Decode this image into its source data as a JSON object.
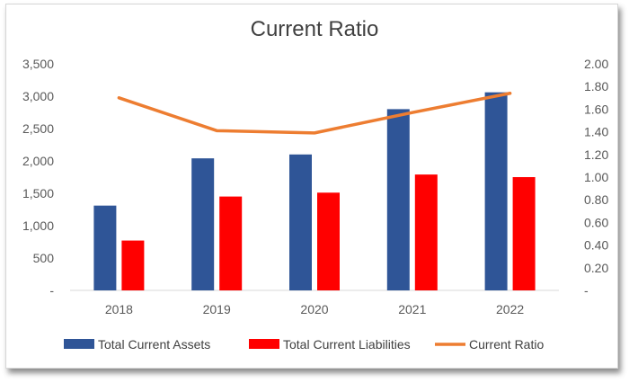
{
  "chart_data": {
    "type": "bar",
    "title": "Current Ratio",
    "xlabel": "",
    "ylabel": "",
    "categories": [
      "2018",
      "2019",
      "2020",
      "2021",
      "2022"
    ],
    "series": [
      {
        "name": "Total Current Assets",
        "type": "bar",
        "axis": "left",
        "color": "#2F5597",
        "values": [
          1310,
          2040,
          2100,
          2800,
          3060
        ]
      },
      {
        "name": "Total Current Liabilities",
        "type": "bar",
        "axis": "left",
        "color": "#FF0000",
        "values": [
          770,
          1450,
          1510,
          1790,
          1750
        ]
      },
      {
        "name": "Current Ratio",
        "type": "line",
        "axis": "right",
        "color": "#ED7D31",
        "values": [
          1.7,
          1.41,
          1.39,
          1.57,
          1.74
        ]
      }
    ],
    "ylim_left": [
      0,
      3500
    ],
    "ylim_right": [
      0,
      2.0
    ],
    "left_tick_labels": [
      "-",
      "500",
      "1,000",
      "1,500",
      "2,000",
      "2,500",
      "3,000",
      "3,500"
    ],
    "right_tick_labels": [
      "-",
      "0.20",
      "0.40",
      "0.60",
      "0.80",
      "1.00",
      "1.20",
      "1.40",
      "1.60",
      "1.80",
      "2.00"
    ],
    "grid": false,
    "legend_position": "bottom"
  }
}
